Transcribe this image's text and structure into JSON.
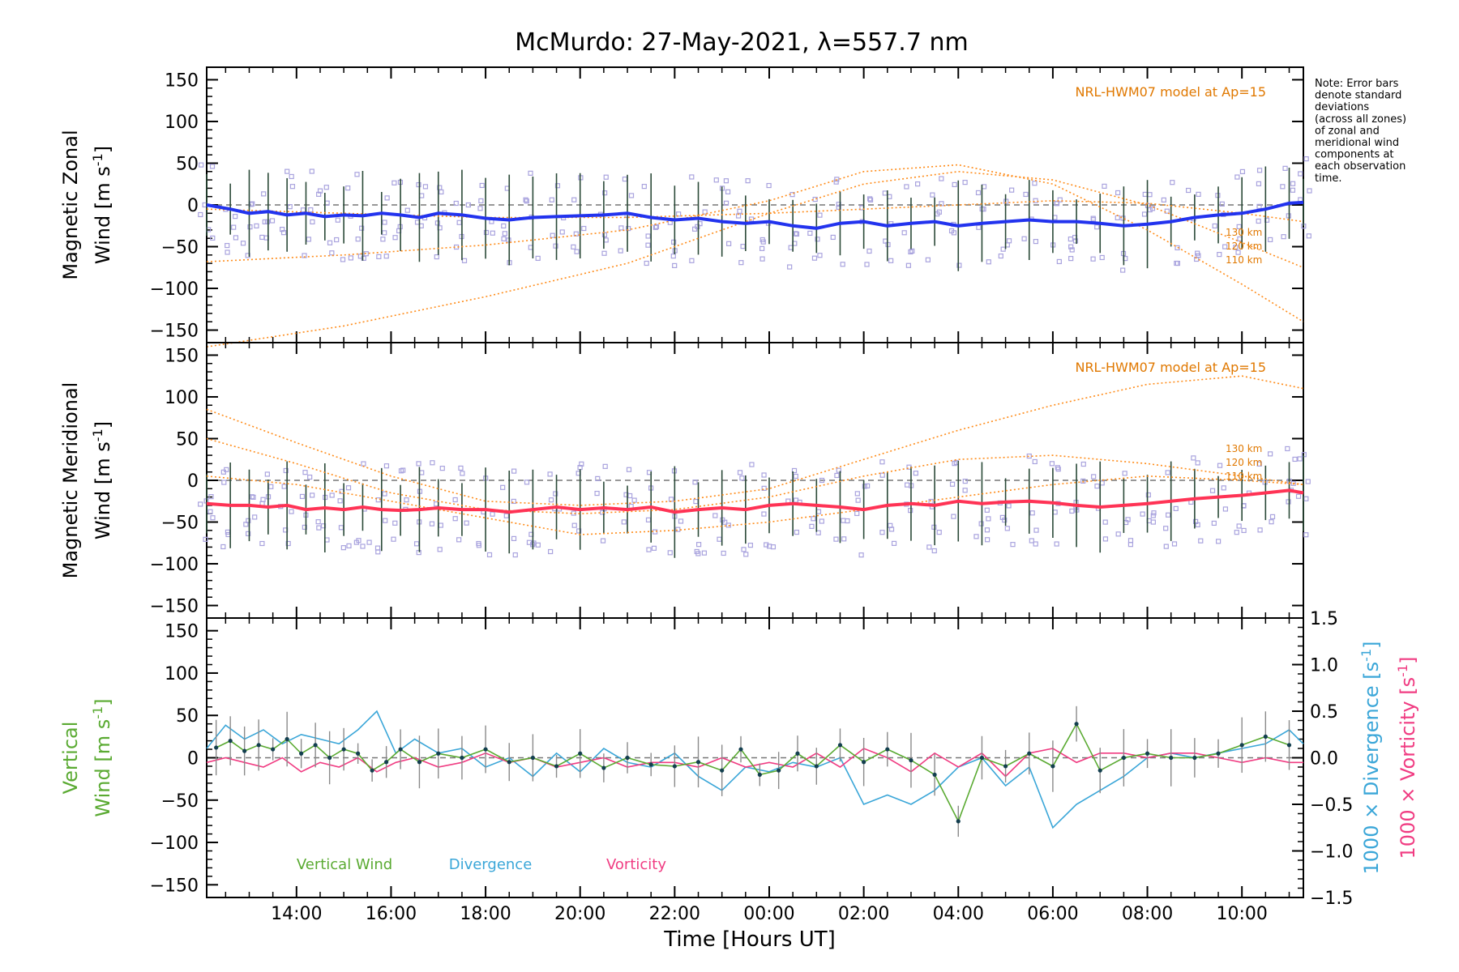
{
  "title": "McMurdo: 27-May-2021, λ=557.7 nm",
  "note": {
    "lines": [
      "Note: Error bars",
      "denote standard",
      "deviations",
      "(across all zones)",
      "of zonal and",
      "meridional wind",
      "components at",
      "each observation",
      "time."
    ]
  },
  "x_axis": {
    "label": "Time [Hours UT]",
    "start_hour": 12.1,
    "end_hour": 35.3,
    "tick_hours": [
      14,
      16,
      18,
      20,
      22,
      24,
      26,
      28,
      30,
      32,
      34
    ],
    "tick_labels": [
      "14:00",
      "16:00",
      "18:00",
      "20:00",
      "22:00",
      "00:00",
      "02:00",
      "04:00",
      "06:00",
      "08:00",
      "10:00"
    ]
  },
  "colors": {
    "zonal_mean": "#2233ee",
    "meridional_mean": "#ff3355",
    "model": "#ff8c1a",
    "model_text": "#e07800",
    "zone_points": "#a9a3de",
    "error_bar": "#2b4a38",
    "zero_line": "#777777",
    "vertical": "#5aaa32",
    "divergence": "#3aa6d8",
    "vorticity": "#f03c82",
    "vertical_points": "#133f4f"
  },
  "chart_data": [
    {
      "type": "line",
      "panel": "zonal",
      "ylabel_line1": "Magnetic Zonal",
      "ylabel_line2": "Wind [m s",
      "ylabel_sup": "-1",
      "ylabel_close": "]",
      "ylim": [
        -165,
        165
      ],
      "yticks": [
        -150,
        -100,
        -50,
        0,
        50,
        100,
        150
      ],
      "ytick_labels": [
        "−150",
        "−100",
        "−50",
        "0",
        "50",
        "100",
        "150"
      ],
      "model_annotation": "NRL-HWM07 model at Ap=15",
      "model_series": [
        {
          "name": "130 km",
          "x": [
            12.1,
            15,
            18,
            21,
            24,
            26,
            28,
            30,
            32,
            34,
            35.3
          ],
          "y": [
            -170,
            -145,
            -110,
            -70,
            -10,
            25,
            40,
            30,
            0,
            -45,
            -75
          ]
        },
        {
          "name": "120 km",
          "x": [
            12.1,
            15,
            18,
            21,
            24,
            26,
            28,
            30,
            32,
            34,
            35.3
          ],
          "y": [
            -68,
            -60,
            -48,
            -30,
            5,
            40,
            48,
            25,
            -30,
            -95,
            -140
          ]
        },
        {
          "name": "110 km",
          "x": [
            12.1,
            15,
            18,
            21,
            24,
            26,
            28,
            30,
            32,
            34,
            35.3
          ],
          "y": [
            -5,
            -10,
            -15,
            -15,
            -10,
            -5,
            0,
            5,
            2,
            -10,
            -20
          ]
        }
      ],
      "mean_series": {
        "name": "mean zonal wind",
        "x": [
          12.1,
          12.6,
          13.0,
          13.4,
          13.8,
          14.2,
          14.6,
          15.0,
          15.4,
          15.8,
          16.2,
          16.6,
          17.0,
          17.5,
          18.0,
          18.5,
          19.0,
          19.5,
          20.0,
          20.5,
          21.0,
          21.5,
          22.0,
          22.5,
          23.0,
          23.5,
          24.0,
          24.5,
          25.0,
          25.5,
          26.0,
          26.5,
          27.0,
          27.5,
          28.0,
          28.5,
          29.0,
          29.5,
          30.0,
          30.5,
          31.0,
          31.5,
          32.0,
          32.5,
          33.0,
          33.5,
          34.0,
          34.5,
          35.0,
          35.3
        ],
        "y": [
          0,
          -5,
          -10,
          -8,
          -12,
          -10,
          -14,
          -12,
          -13,
          -10,
          -12,
          -15,
          -10,
          -12,
          -16,
          -18,
          -15,
          -14,
          -13,
          -12,
          -10,
          -15,
          -18,
          -16,
          -20,
          -22,
          -20,
          -25,
          -28,
          -22,
          -20,
          -25,
          -22,
          -20,
          -25,
          -22,
          -20,
          -18,
          -20,
          -20,
          -22,
          -25,
          -23,
          -20,
          -15,
          -12,
          -10,
          -5,
          2,
          3
        ]
      },
      "labels": [
        "130 km",
        "120 km",
        "110 km"
      ]
    },
    {
      "type": "line",
      "panel": "meridional",
      "ylabel_line1": "Magnetic Meridional",
      "ylabel_line2": "Wind [m s",
      "ylabel_sup": "-1",
      "ylabel_close": "]",
      "ylim": [
        -165,
        165
      ],
      "yticks": [
        -150,
        -100,
        -50,
        0,
        50,
        100,
        150
      ],
      "ytick_labels": [
        "−150",
        "−100",
        "−50",
        "0",
        "50",
        "100",
        "150"
      ],
      "model_annotation": "NRL-HWM07 model at Ap=15",
      "model_series": [
        {
          "name": "130 km",
          "x": [
            12.1,
            14,
            16,
            18,
            20,
            22,
            24,
            26,
            28,
            30,
            32,
            34,
            35.3
          ],
          "y": [
            85,
            45,
            5,
            -25,
            -30,
            -25,
            -10,
            25,
            60,
            90,
            115,
            125,
            110
          ]
        },
        {
          "name": "120 km",
          "x": [
            12.1,
            14,
            16,
            18,
            20,
            22,
            24,
            26,
            28,
            30,
            32,
            34,
            35.3
          ],
          "y": [
            50,
            20,
            -15,
            -35,
            -40,
            -35,
            -20,
            5,
            25,
            30,
            20,
            5,
            -5
          ]
        },
        {
          "name": "110 km",
          "x": [
            12.1,
            14,
            16,
            18,
            20,
            22,
            24,
            26,
            28,
            30,
            32,
            34,
            35.3
          ],
          "y": [
            5,
            -5,
            -25,
            -45,
            -65,
            -60,
            -50,
            -35,
            -20,
            -5,
            5,
            0,
            -5
          ]
        }
      ],
      "mean_series": {
        "name": "mean meridional wind",
        "x": [
          12.1,
          12.6,
          13.0,
          13.4,
          13.8,
          14.2,
          14.6,
          15.0,
          15.4,
          15.8,
          16.2,
          16.6,
          17.0,
          17.5,
          18.0,
          18.5,
          19.0,
          19.5,
          20.0,
          20.5,
          21.0,
          21.5,
          22.0,
          22.5,
          23.0,
          23.5,
          24.0,
          24.5,
          25.0,
          25.5,
          26.0,
          26.5,
          27.0,
          27.5,
          28.0,
          28.5,
          29.0,
          29.5,
          30.0,
          30.5,
          31.0,
          31.5,
          32.0,
          32.5,
          33.0,
          33.5,
          34.0,
          34.5,
          35.0,
          35.3
        ],
        "y": [
          -28,
          -30,
          -30,
          -32,
          -30,
          -35,
          -33,
          -35,
          -32,
          -35,
          -36,
          -35,
          -33,
          -35,
          -35,
          -38,
          -35,
          -32,
          -35,
          -33,
          -35,
          -32,
          -38,
          -35,
          -33,
          -35,
          -30,
          -28,
          -30,
          -32,
          -35,
          -30,
          -28,
          -30,
          -25,
          -28,
          -26,
          -25,
          -27,
          -30,
          -32,
          -30,
          -28,
          -25,
          -22,
          -20,
          -18,
          -15,
          -12,
          -15
        ]
      },
      "labels": [
        "130 km",
        "120 km",
        "110 km"
      ]
    },
    {
      "type": "line",
      "panel": "vertical",
      "ylabel_line1": "Vertical",
      "ylabel_line2": "Wind [m s",
      "ylabel_sup": "-1",
      "ylabel_close": "]",
      "ylim": [
        -165,
        165
      ],
      "yticks": [
        -150,
        -100,
        -50,
        0,
        50,
        100,
        150
      ],
      "ytick_labels": [
        "−150",
        "−100",
        "−50",
        "0",
        "50",
        "100",
        "150"
      ],
      "y2lim": [
        -1.5,
        1.5
      ],
      "y2ticks": [
        -1.5,
        -1.0,
        -0.5,
        0.0,
        0.5,
        1.0,
        1.5
      ],
      "y2tick_labels": [
        "−1.5",
        "−1.0",
        "−0.5",
        "0.0",
        "0.5",
        "1.0",
        "1.5"
      ],
      "y2label_div": "1000 × Divergence [s",
      "y2label_vort": "1000 × Vorticity [s",
      "y2label_sup": "-1",
      "y2label_close": "]",
      "legend": [
        "Vertical Wind",
        "Divergence",
        "Vorticity"
      ],
      "series": [
        {
          "name": "Vertical Wind",
          "x": [
            12.3,
            12.6,
            12.9,
            13.2,
            13.5,
            13.8,
            14.1,
            14.4,
            14.7,
            15.0,
            15.3,
            15.6,
            15.9,
            16.2,
            16.6,
            17.0,
            17.5,
            18.0,
            18.5,
            19.0,
            19.5,
            20.0,
            20.5,
            21.0,
            21.5,
            22.0,
            22.5,
            23.0,
            23.4,
            23.8,
            24.2,
            24.6,
            25.0,
            25.5,
            26.0,
            26.5,
            27.0,
            27.5,
            28.0,
            28.5,
            29.0,
            29.5,
            30.0,
            30.5,
            31.0,
            31.5,
            32.0,
            32.5,
            33.0,
            33.5,
            34.0,
            34.5,
            35.0
          ],
          "y": [
            12,
            20,
            8,
            15,
            10,
            22,
            5,
            15,
            0,
            10,
            5,
            -15,
            -5,
            10,
            -5,
            5,
            0,
            10,
            -5,
            0,
            -10,
            5,
            -12,
            0,
            -8,
            -10,
            -5,
            -15,
            10,
            -20,
            -15,
            5,
            -10,
            15,
            -5,
            10,
            -3,
            -20,
            -75,
            0,
            -10,
            5,
            -10,
            40,
            -15,
            0,
            5,
            0,
            0,
            5,
            15,
            25,
            15
          ]
        },
        {
          "name": "Divergence",
          "x": [
            12.1,
            12.5,
            12.9,
            13.3,
            13.7,
            14.1,
            14.5,
            14.9,
            15.3,
            15.7,
            16.1,
            16.5,
            17.0,
            17.5,
            18.0,
            18.5,
            19.0,
            19.5,
            20.0,
            20.5,
            21.0,
            21.5,
            22.0,
            22.5,
            23.0,
            23.5,
            24.0,
            24.5,
            25.0,
            25.5,
            26.0,
            26.5,
            27.0,
            27.5,
            28.0,
            28.5,
            29.0,
            29.5,
            30.0,
            30.5,
            31.0,
            31.5,
            32.0,
            32.5,
            33.0,
            33.5,
            34.0,
            34.5,
            35.0,
            35.3
          ],
          "y": [
            0.1,
            0.35,
            0.2,
            0.3,
            0.15,
            0.25,
            0.2,
            0.15,
            0.3,
            0.5,
            0.05,
            0.2,
            0.05,
            0.1,
            -0.1,
            0.0,
            -0.2,
            0.05,
            -0.15,
            0.1,
            -0.05,
            -0.1,
            0.05,
            -0.2,
            -0.35,
            -0.1,
            -0.15,
            -0.05,
            -0.1,
            0.0,
            -0.5,
            -0.4,
            -0.5,
            -0.35,
            -0.1,
            0.0,
            -0.3,
            -0.1,
            -0.75,
            -0.5,
            -0.35,
            -0.2,
            0.0,
            0.05,
            0.0,
            0.05,
            0.1,
            0.15,
            0.3,
            0.15
          ]
        },
        {
          "name": "Vorticity",
          "x": [
            12.1,
            12.5,
            12.9,
            13.3,
            13.7,
            14.1,
            14.5,
            14.9,
            15.3,
            15.7,
            16.1,
            16.5,
            17.0,
            17.5,
            18.0,
            18.5,
            19.0,
            19.5,
            20.0,
            20.5,
            21.0,
            21.5,
            22.0,
            22.5,
            23.0,
            23.5,
            24.0,
            24.5,
            25.0,
            25.5,
            26.0,
            26.5,
            27.0,
            27.5,
            28.0,
            28.5,
            29.0,
            29.5,
            30.0,
            30.5,
            31.0,
            31.5,
            32.0,
            32.5,
            33.0,
            33.5,
            34.0,
            34.5,
            35.0,
            35.3
          ],
          "y": [
            -0.05,
            0.0,
            -0.05,
            -0.1,
            0.0,
            -0.15,
            -0.05,
            -0.1,
            0.0,
            -0.15,
            -0.05,
            0.0,
            -0.1,
            -0.05,
            0.05,
            -0.05,
            0.0,
            -0.1,
            -0.05,
            0.0,
            -0.1,
            -0.05,
            -0.05,
            -0.1,
            0.0,
            -0.1,
            -0.05,
            -0.1,
            0.05,
            -0.1,
            0.1,
            0.0,
            -0.15,
            0.05,
            -0.1,
            0.05,
            -0.2,
            0.05,
            0.1,
            -0.05,
            0.05,
            0.05,
            0.0,
            0.05,
            0.05,
            0.0,
            -0.05,
            0.0,
            -0.05,
            -0.05
          ]
        }
      ]
    }
  ]
}
